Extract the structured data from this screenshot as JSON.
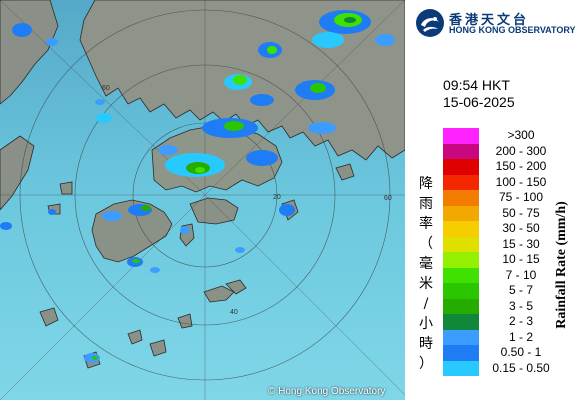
{
  "header": {
    "org_name_cn": "香港天文台",
    "org_name_en": "HONG KONG OBSERVATORY"
  },
  "timestamp": {
    "time": "09:54 HKT",
    "date": "15-06-2025"
  },
  "legend": {
    "title_en": "Rainfall Rate (mm/h)",
    "title_cn": [
      "降",
      "雨",
      "率",
      "（",
      "毫",
      "米",
      "/",
      "小",
      "時",
      "）"
    ],
    "items": [
      {
        "label": ">300",
        "color": "#ff22ff"
      },
      {
        "label": "200 - 300",
        "color": "#c8087f"
      },
      {
        "label": "150 - 200",
        "color": "#e10000"
      },
      {
        "label": "100 - 150",
        "color": "#f32800"
      },
      {
        "label": "75 - 100",
        "color": "#f27c00"
      },
      {
        "label": "50 - 75",
        "color": "#f2a800"
      },
      {
        "label": "30 - 50",
        "color": "#f6ce00"
      },
      {
        "label": "15 - 30",
        "color": "#e0e000"
      },
      {
        "label": "10 - 15",
        "color": "#94f000"
      },
      {
        "label": "7 - 10",
        "color": "#3fe100"
      },
      {
        "label": "5 - 7",
        "color": "#2bc600"
      },
      {
        "label": "3 - 5",
        "color": "#26ab00"
      },
      {
        "label": "2 - 3",
        "color": "#11873a"
      },
      {
        "label": "1 - 2",
        "color": "#3b9dff"
      },
      {
        "label": "0.50 - 1",
        "color": "#1e7df5"
      },
      {
        "label": "0.15 - 0.50",
        "color": "#27c9ff"
      }
    ]
  },
  "map": {
    "range_ring_labels": [
      "20",
      "40",
      "60"
    ],
    "copyright": "© Hong Kong Observatory"
  }
}
